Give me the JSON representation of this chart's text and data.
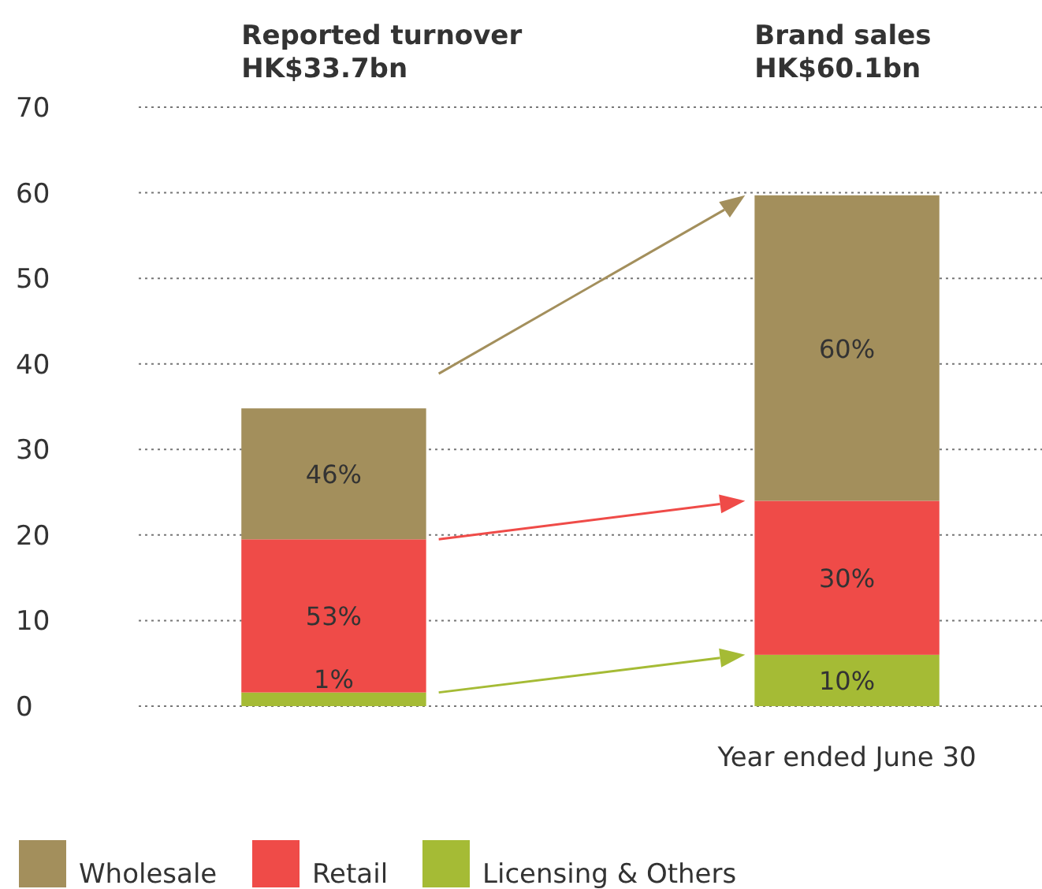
{
  "chart_data": {
    "type": "bar",
    "stacked": true,
    "categories": [
      "Reported turnover\nHK$33.7bn",
      "Brand sales\nHK$60.1bn"
    ],
    "xlabel": "Year ended June 30",
    "series": [
      {
        "name": "Licensing & Others",
        "color": "#a5bb35",
        "values": [
          1.6,
          6.0
        ]
      },
      {
        "name": "Retail",
        "color": "#ef4b48",
        "values": [
          17.9,
          18.0
        ]
      },
      {
        "name": "Wholesale",
        "color": "#a38f5c",
        "values": [
          15.3,
          35.7
        ]
      }
    ],
    "annotations": [
      "1%",
      "53%",
      "46%",
      "10%",
      "30%",
      "60%"
    ],
    "ylim": [
      0,
      70
    ],
    "yticks": [
      0,
      10,
      20,
      30,
      40,
      50,
      60,
      70
    ],
    "grid": "y",
    "legend": "bottom left"
  }
}
